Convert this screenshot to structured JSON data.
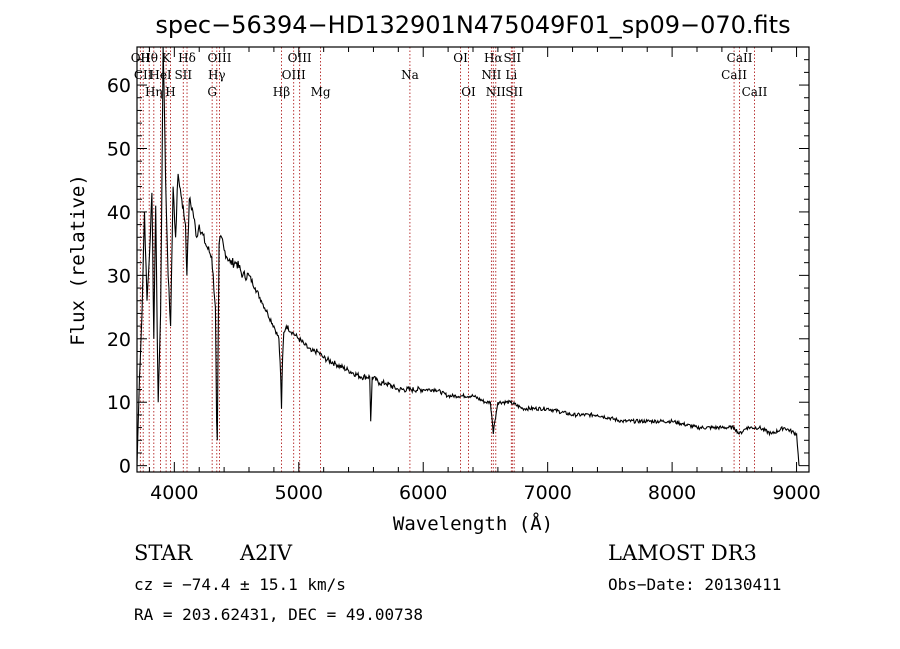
{
  "chart_data": {
    "type": "line",
    "title": "spec−56394−HD132901N475049F01_sp09−070.fits",
    "xlabel": "Wavelength (Å)",
    "ylabel": "Flux (relative)",
    "xlim": [
      3700,
      9100
    ],
    "ylim": [
      -1,
      66
    ],
    "xticks": [
      4000,
      5000,
      6000,
      7000,
      8000,
      9000
    ],
    "yticks": [
      0,
      10,
      20,
      30,
      40,
      50,
      60
    ],
    "series": [
      {
        "name": "spectrum",
        "x": [
          3700,
          3720,
          3740,
          3760,
          3780,
          3800,
          3820,
          3835,
          3850,
          3870,
          3890,
          3910,
          3930,
          3950,
          3970,
          3990,
          4010,
          4030,
          4060,
          4090,
          4101,
          4120,
          4150,
          4180,
          4200,
          4250,
          4300,
          4330,
          4340,
          4345,
          4360,
          4380,
          4400,
          4450,
          4500,
          4550,
          4600,
          4650,
          4700,
          4750,
          4800,
          4840,
          4855,
          4861,
          4870,
          4880,
          4900,
          4950,
          5000,
          5050,
          5100,
          5150,
          5200,
          5300,
          5400,
          5500,
          5570,
          5578,
          5590,
          5650,
          5700,
          5800,
          5900,
          6000,
          6100,
          6200,
          6300,
          6400,
          6500,
          6540,
          6555,
          6563,
          6575,
          6600,
          6700,
          6800,
          6900,
          7000,
          7200,
          7400,
          7600,
          7800,
          8000,
          8200,
          8400,
          8500,
          8540,
          8600,
          8700,
          8800,
          8900,
          9000,
          9020
        ],
        "y": [
          0,
          14,
          24,
          40,
          26,
          33,
          43,
          20,
          41,
          10,
          24,
          66,
          45,
          30,
          22,
          44,
          36,
          46,
          42,
          38,
          30,
          42,
          40,
          36,
          38,
          35,
          33,
          25,
          7,
          4,
          35,
          36,
          34,
          32,
          32,
          30,
          30,
          28,
          26,
          24,
          22,
          20,
          14,
          9,
          17,
          21,
          22,
          21,
          20,
          19,
          18,
          18,
          17,
          16,
          15,
          14,
          14,
          7,
          14,
          13,
          13,
          12,
          12,
          12,
          12,
          11,
          11,
          11,
          10,
          10,
          7,
          5,
          7,
          10,
          10,
          9,
          9,
          9,
          8,
          8,
          7,
          7,
          7,
          6,
          6,
          6,
          5,
          6,
          6,
          5,
          6,
          5,
          0
        ]
      }
    ],
    "spectral_lines": [
      {
        "label": "Hθ",
        "x": 3798,
        "row": 0
      },
      {
        "label": "OII",
        "x": 3727,
        "row": 0
      },
      {
        "label": "CII",
        "x": 3750,
        "row": 1
      },
      {
        "label": "Hη",
        "x": 3835,
        "row": 2
      },
      {
        "label": "HeI",
        "x": 3889,
        "row": 1
      },
      {
        "label": "K",
        "x": 3934,
        "row": 0
      },
      {
        "label": "H",
        "x": 3969,
        "row": 2
      },
      {
        "label": "SII",
        "x": 4072,
        "row": 1
      },
      {
        "label": "Hδ",
        "x": 4102,
        "row": 0
      },
      {
        "label": "G",
        "x": 4304,
        "row": 2
      },
      {
        "label": "Hγ",
        "x": 4341,
        "row": 1
      },
      {
        "label": "OIII",
        "x": 4363,
        "row": 0
      },
      {
        "label": "Hβ",
        "x": 4861,
        "row": 2
      },
      {
        "label": "OIII",
        "x": 4959,
        "row": 1
      },
      {
        "label": "OIII",
        "x": 5007,
        "row": 0
      },
      {
        "label": "Mg",
        "x": 5175,
        "row": 2
      },
      {
        "label": "Na",
        "x": 5893,
        "row": 1
      },
      {
        "label": "OI",
        "x": 6300,
        "row": 0
      },
      {
        "label": "OI",
        "x": 6364,
        "row": 2
      },
      {
        "label": "NII",
        "x": 6548,
        "row": 1
      },
      {
        "label": "Hα",
        "x": 6563,
        "row": 0
      },
      {
        "label": "NII",
        "x": 6583,
        "row": 2
      },
      {
        "label": "Li",
        "x": 6708,
        "row": 1
      },
      {
        "label": "SII",
        "x": 6716,
        "row": 0
      },
      {
        "label": "SII",
        "x": 6731,
        "row": 2
      },
      {
        "label": "CaII",
        "x": 8498,
        "row": 1
      },
      {
        "label": "CaII",
        "x": 8542,
        "row": 0
      },
      {
        "label": "CaII",
        "x": 8662,
        "row": 2
      }
    ]
  },
  "info": {
    "class": "STAR",
    "subclass": "A2IV",
    "survey": "LAMOST DR3",
    "cz": "cz = −74.4 ± 15.1 km/s",
    "obs_date": "Obs−Date: 20130411",
    "radec": "RA = 203.62431, DEC =  49.00738"
  }
}
